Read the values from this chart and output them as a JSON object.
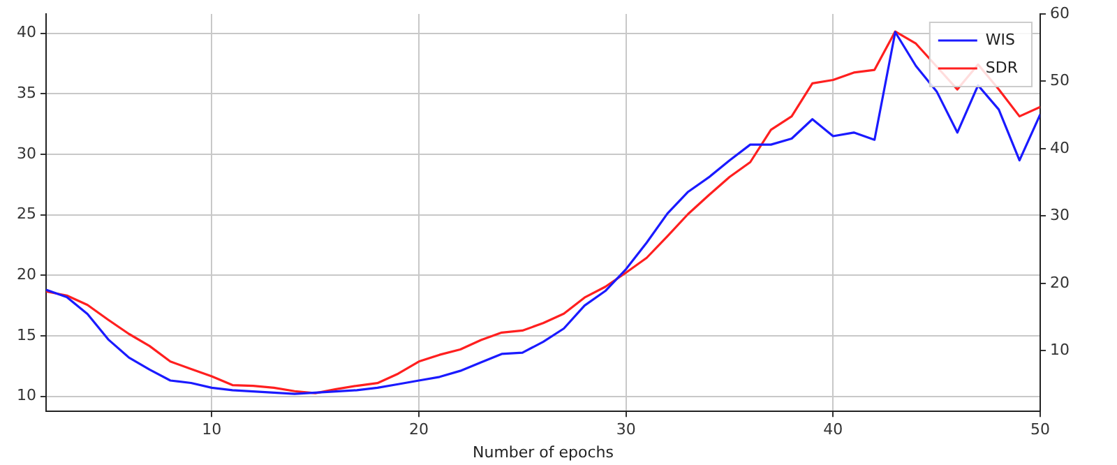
{
  "chart_data": {
    "type": "line",
    "xlabel": "Number of epochs",
    "x": [
      2,
      3,
      4,
      5,
      6,
      7,
      8,
      9,
      10,
      11,
      12,
      13,
      14,
      15,
      16,
      17,
      18,
      19,
      20,
      21,
      22,
      23,
      24,
      25,
      26,
      27,
      28,
      29,
      30,
      31,
      32,
      33,
      34,
      35,
      36,
      37,
      38,
      39,
      40,
      41,
      42,
      43,
      44,
      45,
      46,
      47,
      48,
      49,
      50
    ],
    "series": [
      {
        "name": "WIS",
        "color": "#1a1aff",
        "values": [
          18.8,
          18.2,
          16.8,
          14.7,
          13.2,
          12.2,
          11.3,
          11.1,
          10.7,
          10.5,
          10.4,
          10.3,
          10.2,
          10.3,
          10.4,
          10.5,
          10.7,
          11.0,
          11.3,
          11.6,
          12.1,
          12.8,
          13.5,
          13.6,
          14.5,
          15.6,
          17.5,
          18.7,
          20.5,
          22.7,
          25.1,
          26.9,
          28.1,
          29.5,
          30.8,
          30.8,
          31.3,
          32.9,
          31.5,
          31.8,
          31.2,
          40.1,
          37.3,
          35.2,
          31.8,
          35.7,
          33.7,
          29.5,
          33.3
        ]
      },
      {
        "name": "SDR",
        "color": "#ff1f1f",
        "axis": "y2",
        "values": [
          18.8,
          18.2,
          16.8,
          14.6,
          12.5,
          10.7,
          8.4,
          7.3,
          6.2,
          4.9,
          4.8,
          4.5,
          4.0,
          3.7,
          4.3,
          4.8,
          5.2,
          6.6,
          8.4,
          9.4,
          10.2,
          11.6,
          12.7,
          13.0,
          14.1,
          15.5,
          17.9,
          19.5,
          21.6,
          23.8,
          27.0,
          30.3,
          33.1,
          35.8,
          38.0,
          42.8,
          44.8,
          49.7,
          50.2,
          51.3,
          51.7,
          57.4,
          55.6,
          52.2,
          48.8,
          52.5,
          48.8,
          44.8,
          46.2
        ]
      }
    ],
    "xlim": [
      2,
      50
    ],
    "xticks": [
      10,
      20,
      30,
      40,
      50
    ],
    "ylim": [
      8.75,
      41.6
    ],
    "yticks": [
      10,
      15,
      20,
      25,
      30,
      35,
      40
    ],
    "y2lim": [
      1,
      60
    ],
    "y2ticks": [
      10,
      20,
      30,
      40,
      50,
      60
    ],
    "grid": true,
    "legend": "top right"
  }
}
